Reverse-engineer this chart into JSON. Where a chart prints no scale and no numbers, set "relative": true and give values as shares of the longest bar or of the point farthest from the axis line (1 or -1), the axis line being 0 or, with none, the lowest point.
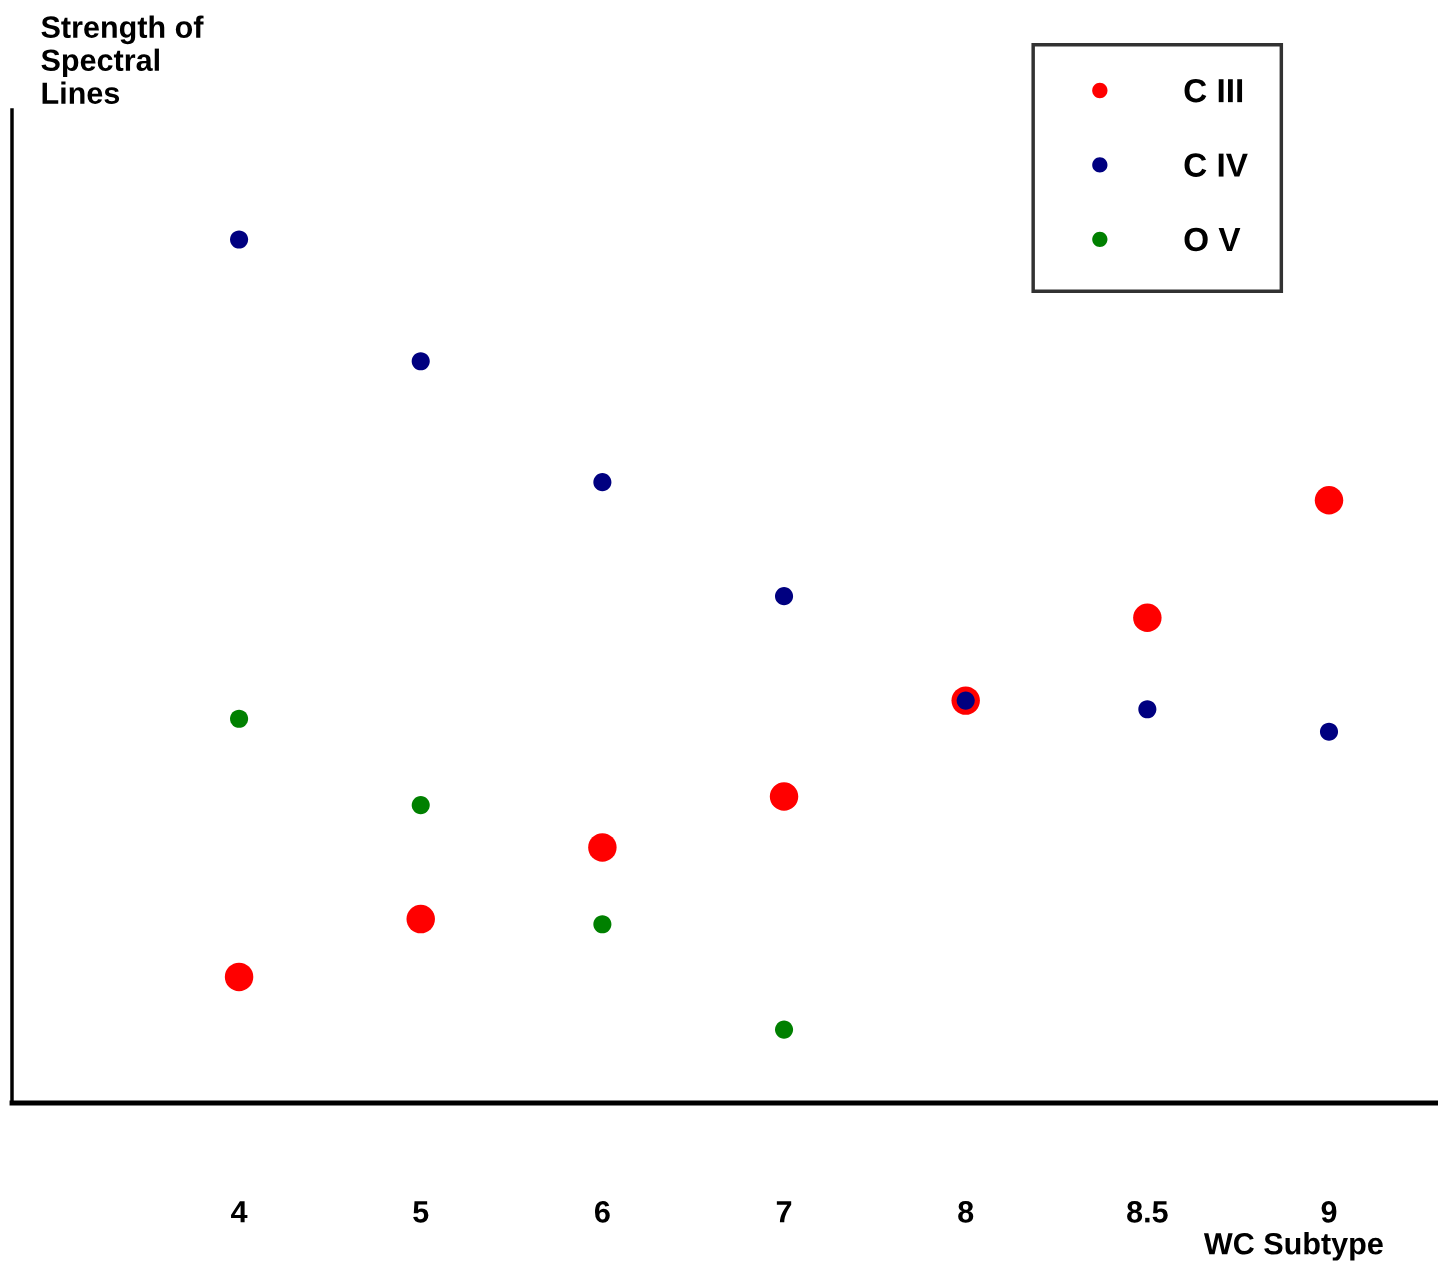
{
  "chart_data": {
    "type": "scatter",
    "relative": true,
    "xlabel": "WC Subtype",
    "ylabel": "Strength of\nSpectral\nLines",
    "categories": [
      "4",
      "5",
      "6",
      "7",
      "8",
      "8.5",
      "9"
    ],
    "series": [
      {
        "name": "C III",
        "color": "#ff0000",
        "values": [
          0.146,
          0.213,
          0.296,
          0.355,
          0.466,
          0.562,
          0.698
        ]
      },
      {
        "name": "C IV",
        "color": "#000080",
        "values": [
          1,
          0.859,
          0.719,
          0.587,
          0.466,
          0.456,
          0.43
        ]
      },
      {
        "name": "O V",
        "color": "#008000",
        "values": [
          0.445,
          0.345,
          0.207,
          0.085,
          null,
          null,
          null
        ]
      }
    ],
    "legend": "top right",
    "marker": "circle",
    "grid": false
  }
}
